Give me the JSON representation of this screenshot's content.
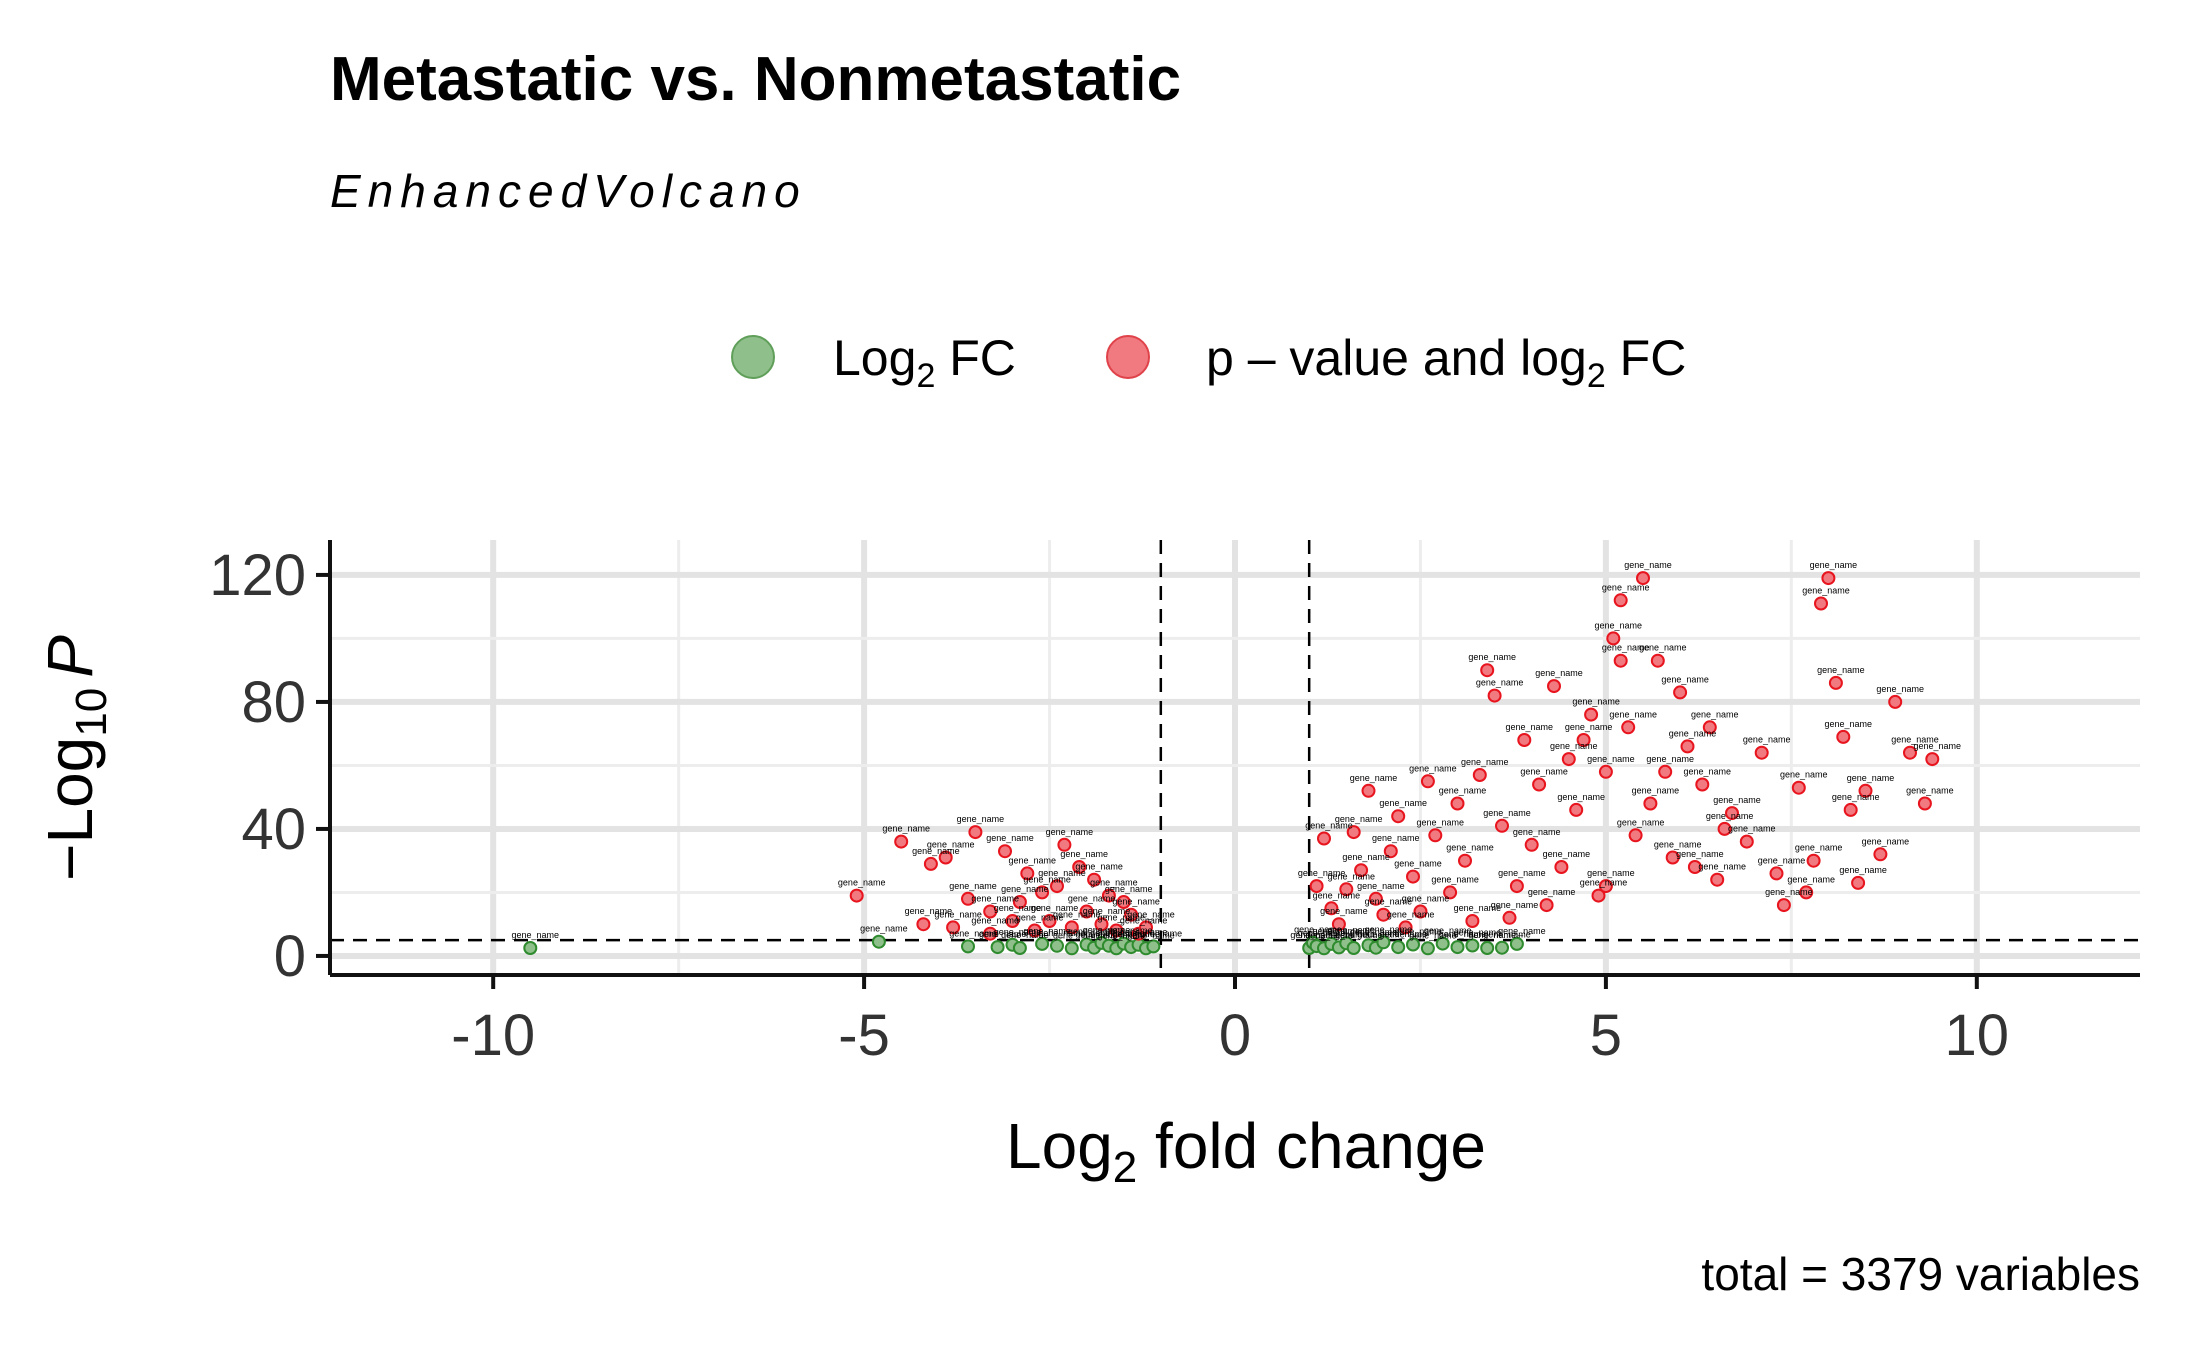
{
  "chart_data": {
    "type": "scatter",
    "title": "Metastatic vs. Nonmetastatic",
    "subtitle": "EnhancedVolcano",
    "xlabel": {
      "base": "Log",
      "sub": "2",
      "rest": " fold change"
    },
    "ylabel": {
      "prefix": "−Log",
      "sub": "10",
      "var": "P"
    },
    "caption": "total = 3379 variables",
    "xlim": [
      -12.2,
      12.2
    ],
    "ylim": [
      -6,
      131
    ],
    "x_ticks": [
      -10,
      -5,
      0,
      5,
      10
    ],
    "x_tick_labels": [
      "-10",
      "-5",
      "0",
      "5",
      "10"
    ],
    "y_ticks": [
      0,
      40,
      80,
      120
    ],
    "y_tick_labels": [
      "0",
      "40",
      "80",
      "120"
    ],
    "fc_cutoff": 1,
    "p_cutoff_neglog10": 5,
    "legend": [
      {
        "key": "fc",
        "pre": "Log",
        "sub": "2",
        "post": " FC",
        "color": "#2e8b2e"
      },
      {
        "key": "both",
        "pre": "p – value and log",
        "sub": "2",
        "post": " FC",
        "color": "#e8141e"
      }
    ],
    "colors": {
      "fc": "#2e8b2e",
      "both": "#e8141e",
      "fc_fill": "#8fbf8a",
      "both_fill": "#f07a80"
    },
    "point_label": "gene_name",
    "series": [
      {
        "name": "Log2 FC",
        "key": "fc",
        "points": [
          [
            -9.5,
            2.5
          ],
          [
            -4.8,
            4.5
          ],
          [
            -3.6,
            3
          ],
          [
            -3.2,
            2.8
          ],
          [
            -3.0,
            3.5
          ],
          [
            -2.9,
            2.5
          ],
          [
            -2.6,
            3.8
          ],
          [
            -2.4,
            3.2
          ],
          [
            -2.2,
            2.4
          ],
          [
            -2.0,
            3.6
          ],
          [
            -1.9,
            2.6
          ],
          [
            -1.8,
            4.1
          ],
          [
            -1.7,
            3.2
          ],
          [
            -1.6,
            2.4
          ],
          [
            -1.5,
            3.9
          ],
          [
            -1.4,
            2.8
          ],
          [
            -1.3,
            3.5
          ],
          [
            -1.2,
            2.4
          ],
          [
            -1.1,
            3.0
          ],
          [
            1.0,
            2.5
          ],
          [
            1.05,
            4.2
          ],
          [
            1.1,
            3.1
          ],
          [
            1.2,
            2.4
          ],
          [
            1.3,
            3.8
          ],
          [
            1.4,
            2.7
          ],
          [
            1.5,
            4.0
          ],
          [
            1.6,
            2.5
          ],
          [
            1.8,
            3.4
          ],
          [
            1.9,
            2.6
          ],
          [
            2.0,
            4.3
          ],
          [
            2.2,
            2.8
          ],
          [
            2.4,
            3.6
          ],
          [
            2.6,
            2.4
          ],
          [
            2.8,
            3.9
          ],
          [
            3.0,
            2.8
          ],
          [
            3.2,
            3.3
          ],
          [
            3.4,
            2.5
          ],
          [
            3.6,
            2.6
          ],
          [
            3.8,
            3.8
          ]
        ]
      },
      {
        "name": "p-value and log2 FC",
        "key": "both",
        "points": [
          [
            -5.1,
            19
          ],
          [
            -4.5,
            36
          ],
          [
            -4.1,
            29
          ],
          [
            -3.9,
            31
          ],
          [
            -4.2,
            10
          ],
          [
            -3.8,
            9
          ],
          [
            -3.5,
            39
          ],
          [
            -3.3,
            14
          ],
          [
            -3.1,
            33
          ],
          [
            -3.3,
            7
          ],
          [
            -2.8,
            26
          ],
          [
            -2.6,
            20
          ],
          [
            -2.3,
            35
          ],
          [
            -2.1,
            28
          ],
          [
            -1.9,
            24
          ],
          [
            -1.7,
            19
          ],
          [
            -1.5,
            17
          ],
          [
            -1.4,
            13
          ],
          [
            -2.5,
            11
          ],
          [
            -2.2,
            9
          ],
          [
            -2.0,
            14
          ],
          [
            -2.9,
            17
          ],
          [
            -3.0,
            11
          ],
          [
            -2.7,
            8
          ],
          [
            -1.8,
            10
          ],
          [
            -1.6,
            8
          ],
          [
            -1.3,
            7
          ],
          [
            -3.6,
            18
          ],
          [
            -2.4,
            22
          ],
          [
            -1.2,
            9
          ],
          [
            1.1,
            22
          ],
          [
            1.2,
            37
          ],
          [
            1.3,
            15
          ],
          [
            1.5,
            21
          ],
          [
            1.6,
            39
          ],
          [
            1.7,
            27
          ],
          [
            1.8,
            52
          ],
          [
            1.9,
            18
          ],
          [
            2.1,
            33
          ],
          [
            2.2,
            44
          ],
          [
            2.4,
            25
          ],
          [
            2.5,
            14
          ],
          [
            2.6,
            55
          ],
          [
            2.7,
            38
          ],
          [
            2.9,
            20
          ],
          [
            3.0,
            48
          ],
          [
            3.1,
            30
          ],
          [
            3.3,
            57
          ],
          [
            3.4,
            90
          ],
          [
            3.5,
            82
          ],
          [
            3.6,
            41
          ],
          [
            3.8,
            22
          ],
          [
            3.9,
            68
          ],
          [
            4.0,
            35
          ],
          [
            4.1,
            54
          ],
          [
            4.3,
            85
          ],
          [
            4.4,
            28
          ],
          [
            4.5,
            62
          ],
          [
            4.6,
            46
          ],
          [
            4.8,
            76
          ],
          [
            4.9,
            19
          ],
          [
            5.0,
            58
          ],
          [
            5.1,
            100
          ],
          [
            5.2,
            93
          ],
          [
            5.3,
            72
          ],
          [
            5.4,
            38
          ],
          [
            5.5,
            119
          ],
          [
            5.6,
            48
          ],
          [
            5.7,
            93
          ],
          [
            5.9,
            31
          ],
          [
            6.0,
            83
          ],
          [
            6.1,
            66
          ],
          [
            6.3,
            54
          ],
          [
            6.4,
            72
          ],
          [
            6.5,
            24
          ],
          [
            6.7,
            45
          ],
          [
            6.9,
            36
          ],
          [
            7.1,
            64
          ],
          [
            7.3,
            26
          ],
          [
            7.4,
            16
          ],
          [
            7.6,
            53
          ],
          [
            7.8,
            30
          ],
          [
            7.9,
            111
          ],
          [
            8.0,
            119
          ],
          [
            8.1,
            86
          ],
          [
            8.2,
            69
          ],
          [
            8.3,
            46
          ],
          [
            8.5,
            52
          ],
          [
            8.7,
            32
          ],
          [
            8.9,
            80
          ],
          [
            9.1,
            64
          ],
          [
            9.3,
            48
          ],
          [
            9.4,
            62
          ],
          [
            5.2,
            112
          ],
          [
            4.7,
            68
          ],
          [
            5.8,
            58
          ],
          [
            6.6,
            40
          ],
          [
            7.7,
            20
          ],
          [
            8.4,
            23
          ],
          [
            3.2,
            11
          ],
          [
            2.3,
            9
          ],
          [
            2.0,
            13
          ],
          [
            1.4,
            10
          ],
          [
            4.2,
            16
          ],
          [
            3.7,
            12
          ],
          [
            6.2,
            28
          ],
          [
            5.0,
            22
          ]
        ]
      }
    ]
  }
}
